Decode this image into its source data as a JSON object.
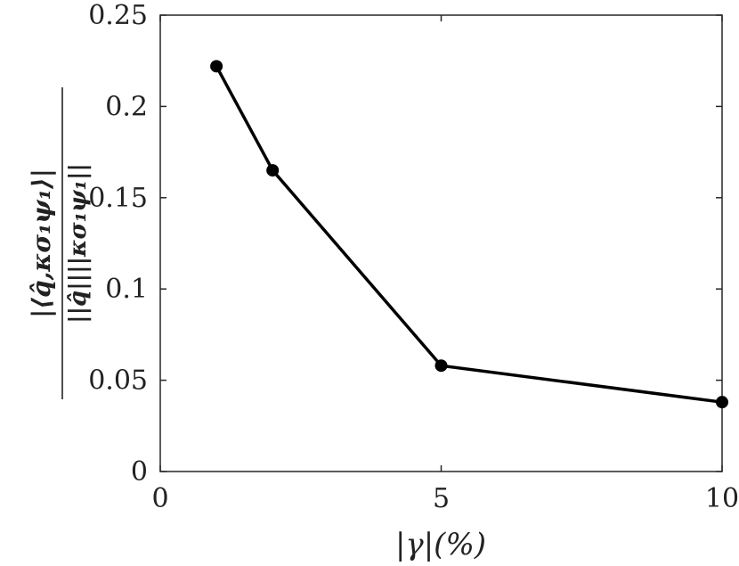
{
  "chart_data": {
    "type": "line",
    "title": "",
    "xlabel": "|γ|(%)",
    "ylabel_numerator": "|⟨q̂,κσ₁ψ₁⟩|",
    "ylabel_denominator": "||q̂||||κσ₁ψ₁||",
    "xlim": [
      0,
      10
    ],
    "ylim": [
      0,
      0.25
    ],
    "xticks": [
      0,
      5,
      10
    ],
    "xtick_labels": [
      "0",
      "5",
      "10"
    ],
    "yticks": [
      0,
      0.05,
      0.1,
      0.15,
      0.2,
      0.25
    ],
    "ytick_labels": [
      "0",
      "0.05",
      "0.1",
      "0.15",
      "0.2",
      "0.25"
    ],
    "grid": false,
    "series": [
      {
        "x": [
          1,
          2,
          5,
          10
        ],
        "y": [
          0.222,
          0.165,
          0.058,
          0.038
        ],
        "color": "#000000",
        "marker": "circle"
      }
    ]
  }
}
